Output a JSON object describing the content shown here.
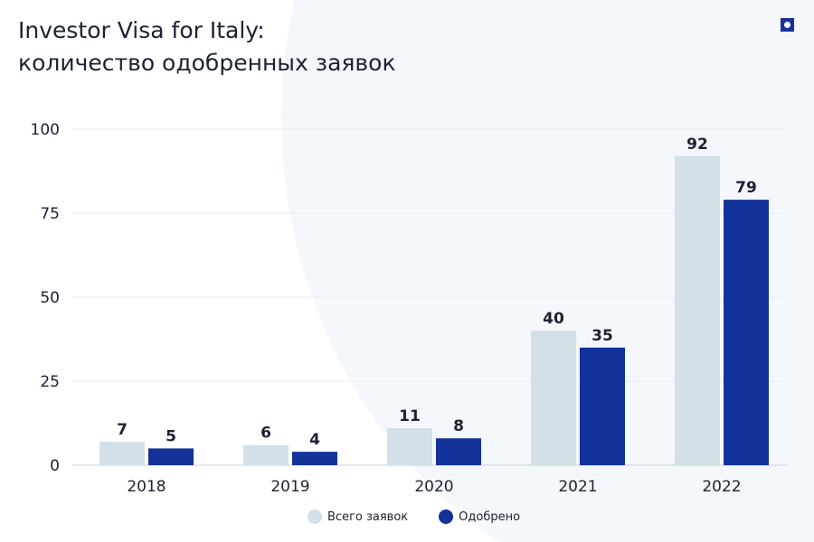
{
  "title_line1": "Investor Visa for Italy:",
  "title_line2": "количество одобренных заявок",
  "colors": {
    "total": "#d3e0e7",
    "approved": "#12329a"
  },
  "chart_data": {
    "type": "bar",
    "title": "Investor Visa for Italy: количество одобренных заявок",
    "categories": [
      "2018",
      "2019",
      "2020",
      "2021",
      "2022"
    ],
    "series": [
      {
        "name": "Всего заявок",
        "values": [
          7,
          6,
          11,
          40,
          92
        ]
      },
      {
        "name": "Одобрено",
        "values": [
          5,
          4,
          8,
          35,
          79
        ]
      }
    ],
    "yticks": [
      0,
      25,
      50,
      75,
      100
    ],
    "ylim": [
      0,
      100
    ],
    "grid": true,
    "legend": "bottom-center"
  }
}
